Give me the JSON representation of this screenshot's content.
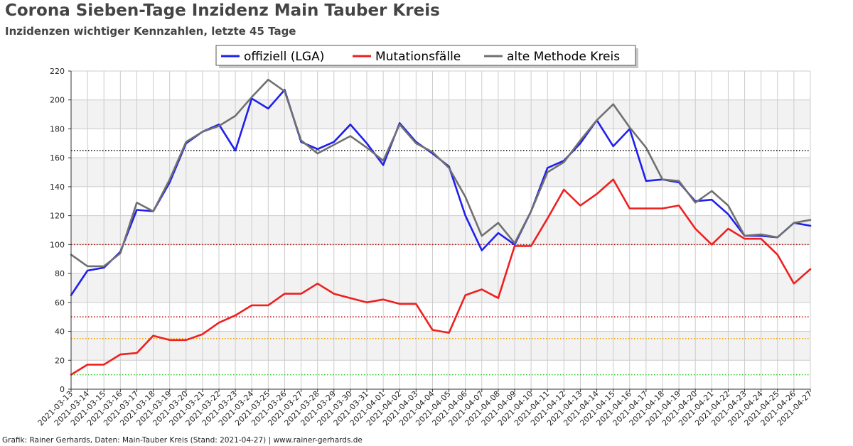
{
  "title": "Corona Sieben-Tage Inzidenz Main Tauber Kreis",
  "subtitle": "Inzidenzen wichtiger Kennzahlen, letzte 45 Tage",
  "footer": "Grafik: Rainer Gerhards, Daten: Main-Tauber Kreis (Stand: 2021-04-27) | www.rainer-gerhards.de",
  "chart_data": {
    "type": "line",
    "legend_position": "top-center",
    "grid": true,
    "ylim": [
      0,
      220
    ],
    "yticks": [
      0,
      20,
      40,
      60,
      80,
      100,
      120,
      140,
      160,
      180,
      200,
      220
    ],
    "x": [
      "2021-03-13",
      "2021-03-14",
      "2021-03-15",
      "2021-03-16",
      "2021-03-17",
      "2021-03-18",
      "2021-03-19",
      "2021-03-20",
      "2021-03-21",
      "2021-03-22",
      "2021-03-23",
      "2021-03-24",
      "2021-03-25",
      "2021-03-26",
      "2021-03-27",
      "2021-03-28",
      "2021-03-29",
      "2021-03-30",
      "2021-03-31",
      "2021-04-01",
      "2021-04-02",
      "2021-04-03",
      "2021-04-04",
      "2021-04-05",
      "2021-04-06",
      "2021-04-07",
      "2021-04-08",
      "2021-04-09",
      "2021-04-10",
      "2021-04-11",
      "2021-04-12",
      "2021-04-13",
      "2021-04-14",
      "2021-04-15",
      "2021-04-16",
      "2021-04-17",
      "2021-04-18",
      "2021-04-19",
      "2021-04-20",
      "2021-04-21",
      "2021-04-22",
      "2021-04-23",
      "2021-04-24",
      "2021-04-25",
      "2021-04-26",
      "2021-04-27"
    ],
    "series": [
      {
        "name": "offiziell (LGA)",
        "color": "#1f1ff0",
        "values": [
          65,
          82,
          84,
          95,
          124,
          123,
          143,
          170,
          178,
          183,
          165,
          201,
          194,
          207,
          171,
          166,
          171,
          183,
          170,
          155,
          184,
          171,
          163,
          154,
          120,
          96,
          108,
          100,
          123,
          153,
          158,
          170,
          186,
          168,
          180,
          144,
          145,
          143,
          130,
          131,
          121,
          106,
          106,
          105,
          115,
          113
        ]
      },
      {
        "name": "Mutationsfälle",
        "color": "#ee2020",
        "values": [
          10,
          17,
          17,
          24,
          25,
          37,
          34,
          34,
          38,
          46,
          51,
          58,
          58,
          66,
          66,
          73,
          66,
          63,
          60,
          62,
          59,
          59,
          41,
          39,
          65,
          69,
          63,
          99,
          99,
          118,
          138,
          127,
          135,
          145,
          125,
          125,
          125,
          127,
          111,
          100,
          111,
          104,
          104,
          93,
          73,
          83
        ]
      },
      {
        "name": "alte Methode Kreis",
        "color": "#707070",
        "values": [
          93,
          85,
          85,
          94,
          129,
          123,
          145,
          171,
          178,
          182,
          189,
          202,
          214,
          206,
          172,
          163,
          169,
          175,
          167,
          158,
          183,
          170,
          164,
          153,
          133,
          106,
          115,
          101,
          123,
          150,
          157,
          172,
          186,
          197,
          181,
          167,
          145,
          144,
          129,
          137,
          127,
          106,
          107,
          105,
          115,
          117
        ]
      }
    ],
    "thresholds": [
      {
        "value": 165,
        "color": "#000000"
      },
      {
        "value": 100,
        "color": "#b30000"
      },
      {
        "value": 50,
        "color": "#b30000"
      },
      {
        "value": 35,
        "color": "#f0a000"
      },
      {
        "value": 10,
        "color": "#22cc22"
      }
    ],
    "colors": {
      "band": "#f2f2f2",
      "grid": "#cccccc",
      "axis": "#333333"
    }
  }
}
